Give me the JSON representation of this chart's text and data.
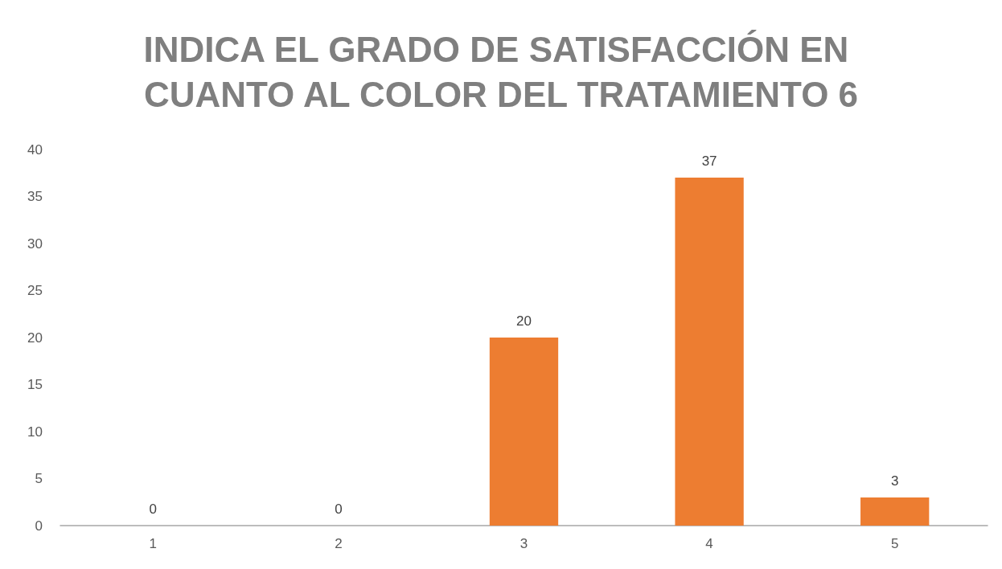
{
  "chart_data": {
    "type": "bar",
    "title": "INDICA EL GRADO DE SATISFACCIÓN EN CUANTO AL COLOR DEL TRATAMIENTO 6",
    "categories": [
      "1",
      "2",
      "3",
      "4",
      "5"
    ],
    "values": [
      0,
      0,
      20,
      37,
      3
    ],
    "color": "#ed7d31",
    "ylim": [
      0,
      40
    ],
    "yticks": [
      0,
      5,
      10,
      15,
      20,
      25,
      30,
      35,
      40
    ],
    "grid": false,
    "data_labels": true
  }
}
